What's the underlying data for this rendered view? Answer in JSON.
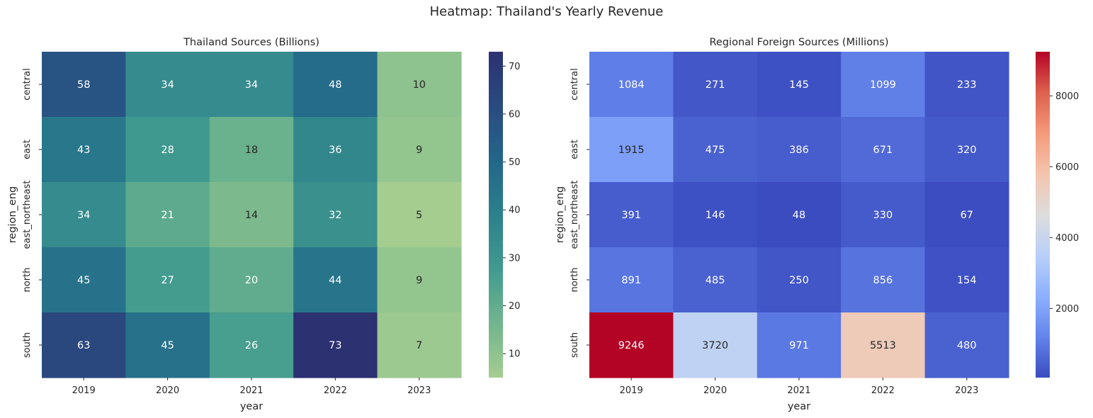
{
  "figure": {
    "title": "Heatmap: Thailand's Yearly Revenue"
  },
  "chart_data": [
    {
      "type": "heatmap",
      "title": "Thailand Sources (Billions)",
      "xlabel": "year",
      "ylabel": "region_eng",
      "x_categories": [
        "2019",
        "2020",
        "2021",
        "2022",
        "2023"
      ],
      "y_categories": [
        "central",
        "east",
        "east_northeast",
        "north",
        "south"
      ],
      "values": [
        [
          58,
          34,
          34,
          48,
          10
        ],
        [
          43,
          28,
          18,
          36,
          9
        ],
        [
          34,
          21,
          14,
          32,
          5
        ],
        [
          45,
          27,
          20,
          44,
          9
        ],
        [
          63,
          45,
          26,
          73,
          7
        ]
      ],
      "colormap": "crest",
      "colors": [
        "#a5cd90",
        "#71b58e",
        "#419a8f",
        "#2c808b",
        "#23668a",
        "#2a4b80",
        "#2c3172"
      ],
      "vmin": 5,
      "vmax": 73,
      "colorbar_ticks": [
        10,
        20,
        30,
        40,
        50,
        60,
        70
      ]
    },
    {
      "type": "heatmap",
      "title": "Regional Foreign Sources (Millions)",
      "xlabel": "year",
      "ylabel": "region_eng",
      "x_categories": [
        "2019",
        "2020",
        "2021",
        "2022",
        "2023"
      ],
      "y_categories": [
        "central",
        "east",
        "east_northeast",
        "north",
        "south"
      ],
      "values": [
        [
          1084,
          271,
          145,
          1099,
          233
        ],
        [
          1915,
          475,
          386,
          671,
          320
        ],
        [
          391,
          146,
          48,
          330,
          67
        ],
        [
          891,
          485,
          250,
          856,
          154
        ],
        [
          9246,
          3720,
          971,
          5513,
          480
        ]
      ],
      "colormap": "coolwarm",
      "colors": [
        "#3b4cc0",
        "#6384eb",
        "#8db0fe",
        "#b8d0f9",
        "#dddcdc",
        "#f4c4ad",
        "#f49a7b",
        "#de604d",
        "#b40426"
      ],
      "vmin": 48,
      "vmax": 9246,
      "colorbar_ticks": [
        2000,
        4000,
        6000,
        8000
      ]
    }
  ]
}
